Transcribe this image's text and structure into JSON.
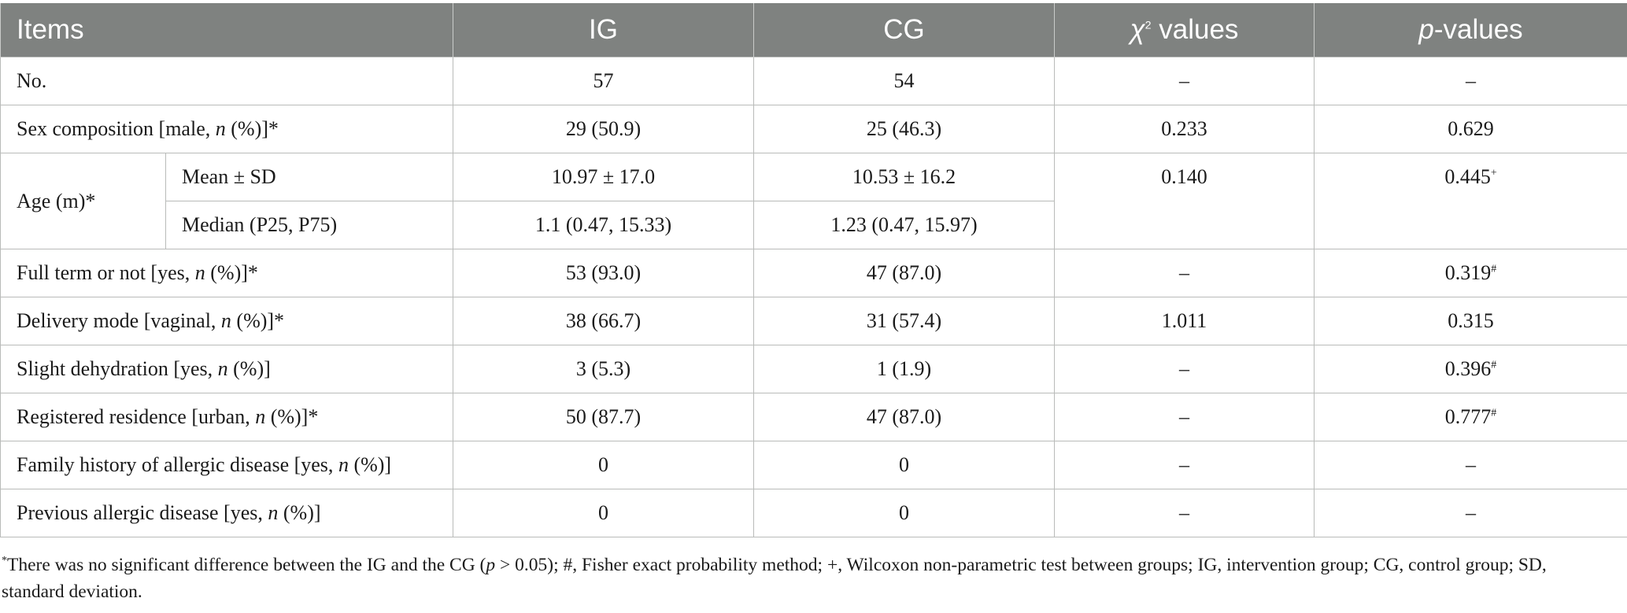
{
  "table": {
    "headers": {
      "items": "Items",
      "ig": "IG",
      "cg": "CG",
      "chi_symbol": "χ",
      "chi_sup": "2",
      "chi_rest": " values",
      "p_italic": "p",
      "p_rest": "-values"
    },
    "rows": {
      "no": {
        "label": "No.",
        "ig": "57",
        "cg": "54",
        "chi": "–",
        "p": "–"
      },
      "sex": {
        "label_pre": "Sex composition [male, ",
        "n": "n",
        "label_post": " (%)]*",
        "ig": "29 (50.9)",
        "cg": "25 (46.3)",
        "chi": "0.233",
        "p": "0.629"
      },
      "age": {
        "label": "Age (m)*",
        "mean_label": "Mean ± SD",
        "mean_ig": "10.97 ± 17.0",
        "mean_cg": "10.53 ± 16.2",
        "median_label": "Median (P25, P75)",
        "median_ig": "1.1 (0.47, 15.33)",
        "median_cg": "1.23 (0.47, 15.97)",
        "chi": "0.140",
        "p": "0.445",
        "p_mark": "+"
      },
      "fullterm": {
        "label_pre": "Full term or not [yes, ",
        "n": "n",
        "label_post": " (%)]*",
        "ig": "53 (93.0)",
        "cg": "47 (87.0)",
        "chi": "–",
        "p": "0.319",
        "p_mark": "#"
      },
      "delivery": {
        "label_pre": "Delivery mode [vaginal, ",
        "n": "n",
        "label_post": " (%)]*",
        "ig": "38 (66.7)",
        "cg": "31 (57.4)",
        "chi": "1.011",
        "p": "0.315"
      },
      "dehydration": {
        "label_pre": "Slight dehydration [yes, ",
        "n": "n",
        "label_post": " (%)]",
        "ig": "3 (5.3)",
        "cg": "1 (1.9)",
        "chi": "–",
        "p": "0.396",
        "p_mark": "#"
      },
      "residence": {
        "label_pre": "Registered residence [urban, ",
        "n": "n",
        "label_post": " (%)]*",
        "ig": "50 (87.7)",
        "cg": "47 (87.0)",
        "chi": "–",
        "p": "0.777",
        "p_mark": "#"
      },
      "family": {
        "label_pre": "Family history of allergic disease [yes, ",
        "n": "n",
        "label_post": " (%)]",
        "ig": "0",
        "cg": "0",
        "chi": "–",
        "p": "–"
      },
      "previous": {
        "label_pre": "Previous allergic disease [yes, ",
        "n": "n",
        "label_post": " (%)]",
        "ig": "0",
        "cg": "0",
        "chi": "–",
        "p": "–"
      }
    }
  },
  "footnote": {
    "star": "*",
    "text_a": "There was no significant difference between the IG and the CG (",
    "p": "p",
    "text_b": " > 0.05); #, Fisher exact probability method; +, Wilcoxon non-parametric test between groups; IG, intervention group; CG, control group; SD, standard deviation."
  },
  "colors": {
    "header_bg": "#7f8280",
    "header_text": "#ffffff",
    "border": "#b9bbb9"
  }
}
